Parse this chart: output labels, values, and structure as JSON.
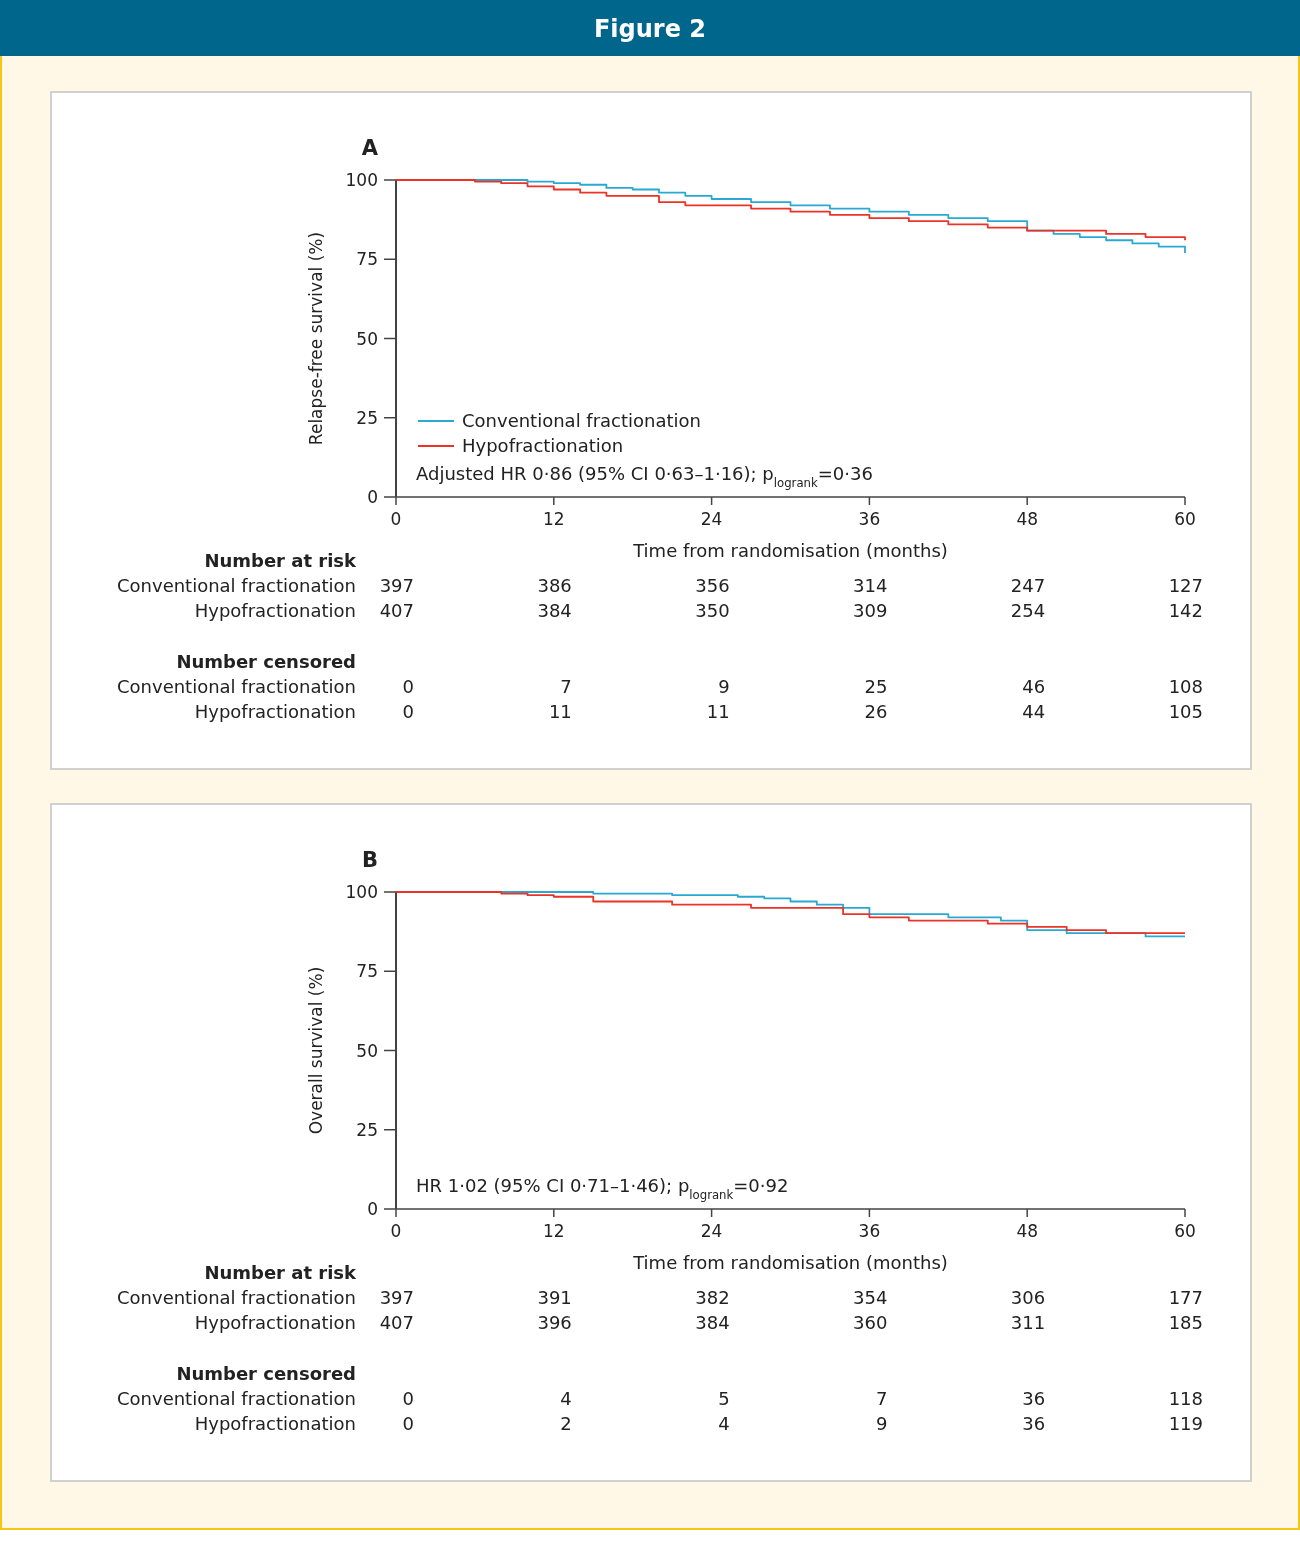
{
  "chart_data": [
    {
      "type": "step",
      "title": "Figure 2",
      "subtitle": "A",
      "xlabel": "Time from randomisation (months)",
      "ylabel": "Relapse-free survival (%)",
      "xlim": [
        0,
        60
      ],
      "xticks": [
        0,
        12,
        24,
        36,
        48,
        60
      ],
      "ylim": [
        0,
        100
      ],
      "yticks": [
        0,
        25,
        50,
        75,
        100
      ],
      "grid": false,
      "legend": "bottom left",
      "series": [
        {
          "name": "Conventional fractionation",
          "color": "#29a9d2",
          "x": [
            0,
            8,
            10,
            12,
            14,
            16,
            18,
            20,
            22,
            24,
            27,
            30,
            33,
            36,
            39,
            42,
            45,
            48,
            50,
            52,
            54,
            56,
            58,
            60
          ],
          "values": [
            100,
            100,
            99.5,
            99,
            98.5,
            97.5,
            97,
            96,
            95,
            94,
            93,
            92,
            91,
            90,
            89,
            88,
            87,
            84,
            83,
            82,
            81,
            80,
            79,
            77
          ]
        },
        {
          "name": "Hypofractionation",
          "color": "#ec3327",
          "x": [
            0,
            4,
            6,
            8,
            10,
            12,
            14,
            16,
            18,
            20,
            22,
            24,
            27,
            30,
            33,
            36,
            39,
            42,
            45,
            48,
            51,
            54,
            57,
            60
          ],
          "values": [
            100,
            100,
            99.5,
            99,
            98,
            97,
            96,
            95,
            95,
            93,
            92,
            92,
            91,
            90,
            89,
            88,
            87,
            86,
            85,
            84,
            84,
            83,
            82,
            81
          ]
        }
      ],
      "annotations": [
        "Adjusted HR 0·86 (95% CI 0·63–1·16); p$_{logrank}$=0·36",
        "Number at risk",
        "Conventional fractionation",
        "397",
        "386",
        "356",
        "314",
        "247",
        "127",
        "Hypofractionation",
        "407",
        "384",
        "350",
        "309",
        "254",
        "142",
        "Number censored",
        "Conventional fractionation",
        "0",
        "7",
        "9",
        "25",
        "46",
        "108",
        "Hypofractionation",
        "0",
        "11",
        "11",
        "26",
        "44",
        "105"
      ]
    },
    {
      "type": "step",
      "subtitle": "B",
      "xlabel": "Time from randomisation (months)",
      "ylabel": "Overall survival (%)",
      "xlim": [
        0,
        60
      ],
      "xticks": [
        0,
        12,
        24,
        36,
        48,
        60
      ],
      "ylim": [
        0,
        100
      ],
      "yticks": [
        0,
        25,
        50,
        75,
        100
      ],
      "grid": false,
      "series": [
        {
          "color": "#29a9d2",
          "x": [
            0,
            8,
            12,
            15,
            18,
            21,
            24,
            26,
            28,
            30,
            32,
            34,
            36,
            39,
            42,
            44,
            46,
            48,
            51,
            54,
            57,
            60
          ],
          "values": [
            100,
            100,
            100,
            99.5,
            99.5,
            99,
            99,
            98.5,
            98,
            97,
            96,
            95,
            93,
            93,
            92,
            92,
            91,
            88,
            87,
            87,
            86,
            86
          ]
        },
        {
          "color": "#ec3327",
          "x": [
            0,
            5,
            8,
            10,
            12,
            15,
            18,
            21,
            24,
            27,
            30,
            32,
            34,
            36,
            39,
            42,
            45,
            48,
            51,
            54,
            57,
            60
          ],
          "values": [
            100,
            100,
            99.5,
            99,
            98.5,
            97,
            97,
            96,
            96,
            95,
            95,
            95,
            93,
            92,
            91,
            91,
            90,
            89,
            88,
            87,
            87,
            87
          ]
        }
      ],
      "annotations": [
        "HR 1·02 (95% CI 0·71–1·46); p$_{logrank}$=0·92",
        "Number at risk",
        "Conventional fractionation",
        "397",
        "391",
        "382",
        "354",
        "306",
        "177",
        "Hypofractionation",
        "407",
        "396",
        "384",
        "360",
        "311",
        "185",
        "Number censored",
        "Conventional fractionation",
        "0",
        "4",
        "5",
        "7",
        "36",
        "118",
        "Hypofractionation",
        "0",
        "2",
        "4",
        "9",
        "36",
        "119"
      ]
    }
  ]
}
